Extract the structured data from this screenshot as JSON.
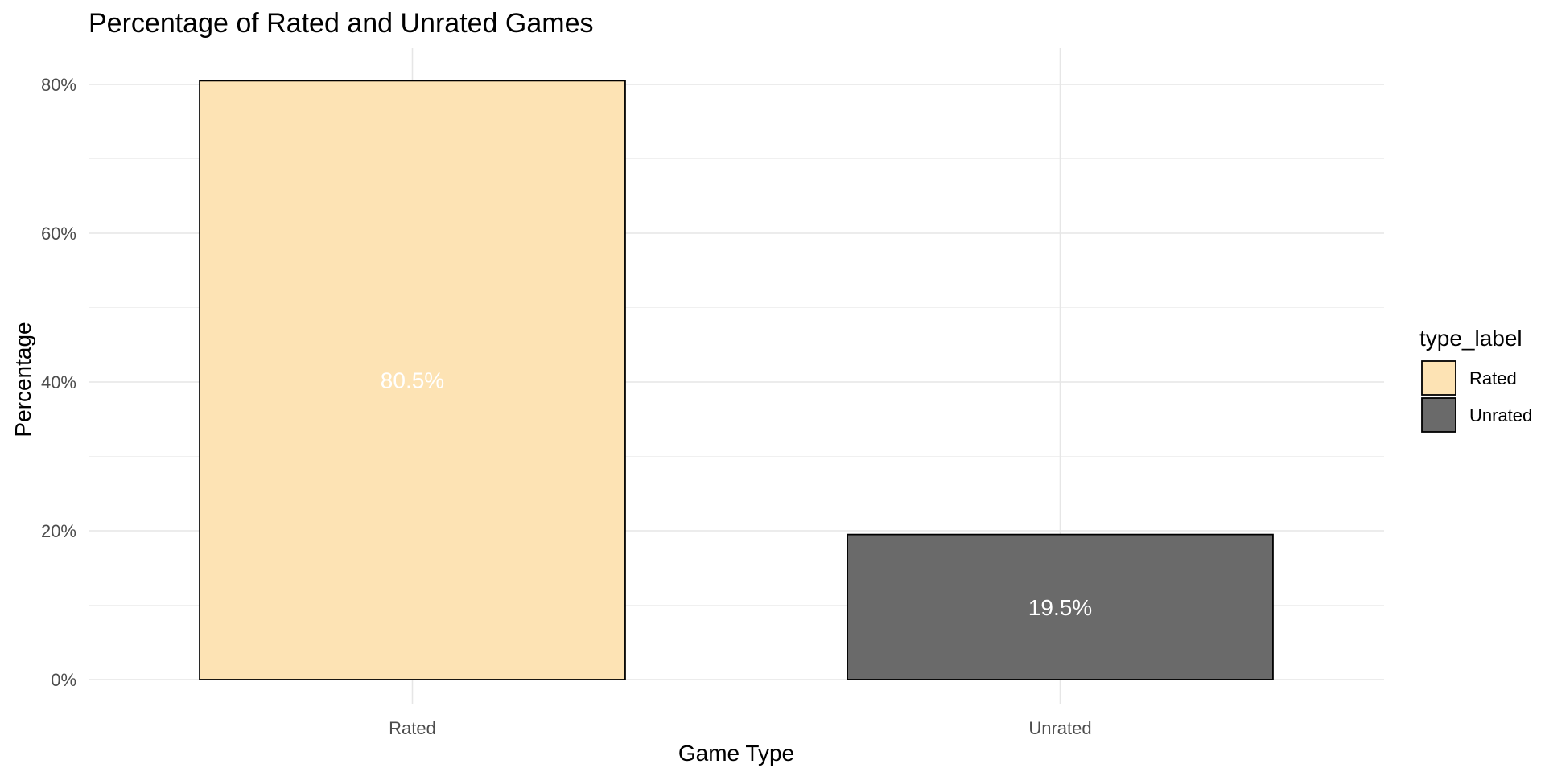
{
  "chart_data": {
    "type": "bar",
    "title": "Percentage of Rated and Unrated Games",
    "xlabel": "Game Type",
    "ylabel": "Percentage",
    "categories": [
      "Rated",
      "Unrated"
    ],
    "values": [
      80.5,
      19.5
    ],
    "value_labels": [
      "80.5%",
      "19.5%"
    ],
    "colors": [
      "#FDE3B4",
      "#6A6A6A"
    ],
    "bar_outline": "#000000",
    "ylim": [
      0,
      85
    ],
    "yticks": [
      0,
      20,
      40,
      60,
      80
    ],
    "ytick_labels": [
      "0%",
      "20%",
      "40%",
      "60%",
      "80%"
    ],
    "grid": true,
    "legend": {
      "title": "type_label",
      "placement": "right",
      "entries": [
        "Rated",
        "Unrated"
      ]
    }
  }
}
